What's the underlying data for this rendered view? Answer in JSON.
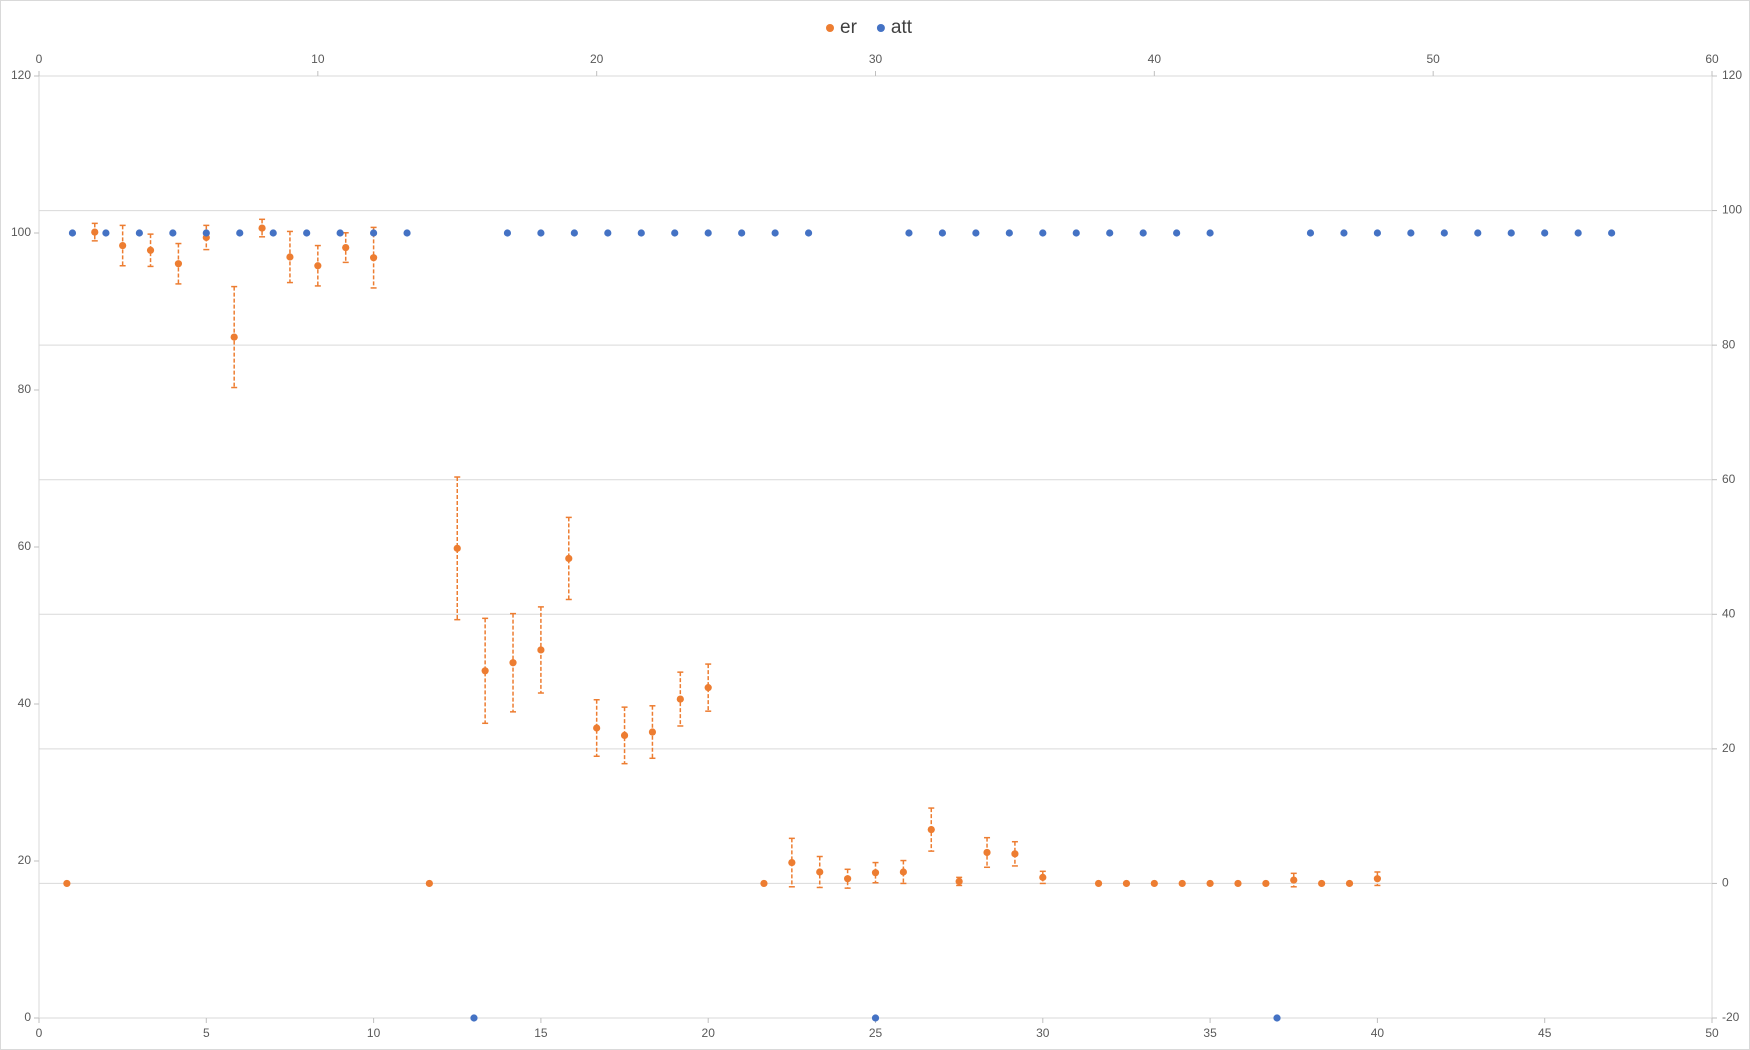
{
  "chart_data": {
    "type": "scatter",
    "legend": "top",
    "xlim": [
      0,
      50
    ],
    "xticks": [
      0,
      5,
      10,
      15,
      20,
      25,
      30,
      35,
      40,
      45,
      50
    ],
    "ylim": [
      0,
      120
    ],
    "yticks": [
      0,
      20,
      40,
      60,
      80,
      100,
      120
    ],
    "x2lim": [
      0,
      60
    ],
    "x2ticks": [
      0,
      10,
      20,
      30,
      40,
      50,
      60
    ],
    "y2lim": [
      -20,
      120
    ],
    "y2ticks": [
      -20,
      0,
      20,
      40,
      60,
      80,
      100,
      120
    ],
    "grid": "y2",
    "series": [
      {
        "name": "er",
        "color": "#ed7d31",
        "axis": "y2",
        "x_axis": "x2",
        "x": [
          1,
          2,
          3,
          4,
          5,
          6,
          7,
          8,
          9,
          10,
          11,
          12,
          14,
          15,
          16,
          17,
          18,
          19,
          20,
          21,
          22,
          23,
          24,
          26,
          27,
          28,
          29,
          30,
          31,
          32,
          33,
          34,
          35,
          36,
          38,
          39,
          40,
          41,
          42,
          43,
          44,
          45,
          46,
          47,
          48
        ],
        "values": [
          0,
          96.8,
          94.8,
          94.1,
          92.1,
          96.0,
          81.2,
          97.4,
          93.1,
          91.8,
          94.5,
          93.0,
          0,
          49.8,
          31.6,
          32.8,
          34.7,
          48.3,
          23.1,
          22.0,
          22.5,
          27.4,
          29.1,
          0,
          3.1,
          1.7,
          0.7,
          1.6,
          1.7,
          8.0,
          0.3,
          4.6,
          4.4,
          0.9,
          0,
          0,
          0,
          0,
          0,
          0,
          0,
          0.5,
          0,
          0,
          0.7
        ],
        "errors": [
          null,
          1.3,
          3,
          2.4,
          3,
          1.8,
          7.5,
          1.3,
          3.8,
          3,
          2.2,
          4.5,
          null,
          10.6,
          7.8,
          7.3,
          6.4,
          6.1,
          4.2,
          4.2,
          3.9,
          4,
          3.5,
          null,
          3.6,
          2.3,
          1.4,
          1.5,
          1.7,
          3.2,
          0.6,
          2.2,
          1.8,
          0.9,
          null,
          null,
          null,
          null,
          null,
          null,
          null,
          1,
          null,
          null,
          1
        ]
      },
      {
        "name": "att",
        "color": "#4472c4",
        "x": [
          1,
          2,
          3,
          4,
          5,
          6,
          7,
          8,
          9,
          10,
          11,
          13,
          14,
          15,
          16,
          17,
          18,
          19,
          20,
          21,
          22,
          23,
          25,
          26,
          27,
          28,
          29,
          30,
          31,
          32,
          33,
          34,
          35,
          37,
          38,
          39,
          40,
          41,
          42,
          43,
          44,
          45,
          46,
          47
        ],
        "values": [
          100,
          100,
          100,
          100,
          100,
          100,
          100,
          100,
          100,
          100,
          100,
          0,
          100,
          100,
          100,
          100,
          100,
          100,
          100,
          100,
          100,
          100,
          0,
          100,
          100,
          100,
          100,
          100,
          100,
          100,
          100,
          100,
          100,
          0,
          100,
          100,
          100,
          100,
          100,
          100,
          100,
          100,
          100,
          100
        ]
      }
    ]
  }
}
